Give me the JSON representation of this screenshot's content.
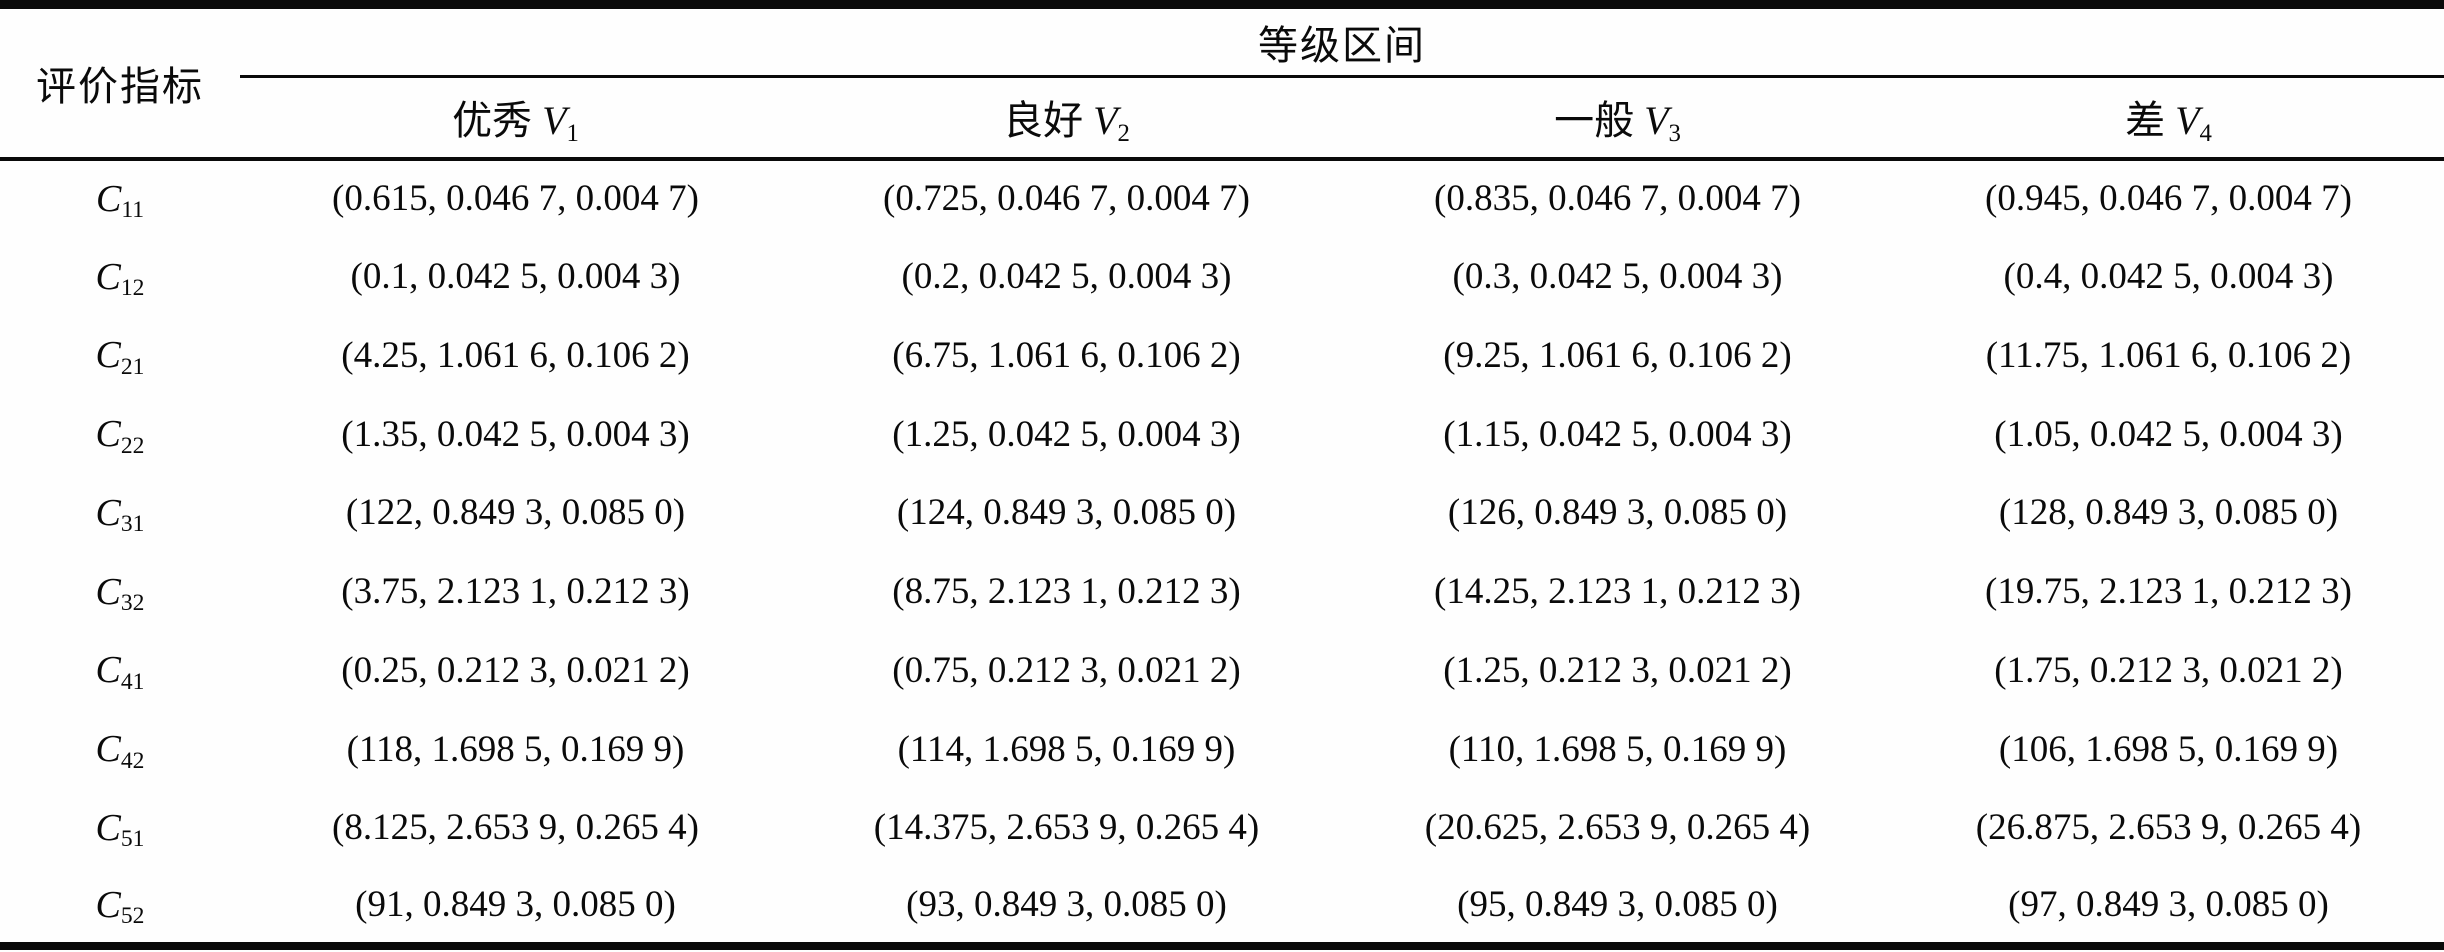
{
  "colors": {
    "text": "#0a0a0a",
    "background": "#fefefe",
    "rule": "#0a0a0a"
  },
  "table": {
    "corner_header": "评价指标",
    "group_header": "等级区间",
    "grade_headers": [
      {
        "text": "优秀",
        "var": "V",
        "sub": "1"
      },
      {
        "text": "良好",
        "var": "V",
        "sub": "2"
      },
      {
        "text": "一般",
        "var": "V",
        "sub": "3"
      },
      {
        "text": "差",
        "var": "V",
        "sub": "4"
      }
    ],
    "rows": [
      {
        "var": "C",
        "sub": "11",
        "cells": [
          "(0.615, 0.046 7, 0.004 7)",
          "(0.725, 0.046 7, 0.004 7)",
          "(0.835, 0.046 7, 0.004 7)",
          "(0.945, 0.046 7, 0.004 7)"
        ]
      },
      {
        "var": "C",
        "sub": "12",
        "cells": [
          "(0.1, 0.042 5, 0.004 3)",
          "(0.2, 0.042 5, 0.004 3)",
          "(0.3, 0.042 5, 0.004 3)",
          "(0.4, 0.042 5, 0.004 3)"
        ]
      },
      {
        "var": "C",
        "sub": "21",
        "cells": [
          "(4.25, 1.061 6, 0.106 2)",
          "(6.75, 1.061 6, 0.106 2)",
          "(9.25, 1.061 6, 0.106 2)",
          "(11.75, 1.061 6, 0.106 2)"
        ]
      },
      {
        "var": "C",
        "sub": "22",
        "cells": [
          "(1.35, 0.042 5, 0.004 3)",
          "(1.25, 0.042 5, 0.004 3)",
          "(1.15, 0.042 5, 0.004 3)",
          "(1.05, 0.042 5, 0.004 3)"
        ]
      },
      {
        "var": "C",
        "sub": "31",
        "cells": [
          "(122, 0.849 3, 0.085 0)",
          "(124, 0.849 3, 0.085 0)",
          "(126, 0.849 3, 0.085 0)",
          "(128, 0.849 3, 0.085 0)"
        ]
      },
      {
        "var": "C",
        "sub": "32",
        "cells": [
          "(3.75, 2.123 1, 0.212 3)",
          "(8.75, 2.123 1, 0.212 3)",
          "(14.25, 2.123 1, 0.212 3)",
          "(19.75, 2.123 1, 0.212 3)"
        ]
      },
      {
        "var": "C",
        "sub": "41",
        "cells": [
          "(0.25, 0.212 3, 0.021 2)",
          "(0.75, 0.212 3, 0.021 2)",
          "(1.25, 0.212 3, 0.021 2)",
          "(1.75, 0.212 3, 0.021 2)"
        ]
      },
      {
        "var": "C",
        "sub": "42",
        "cells": [
          "(118, 1.698 5, 0.169 9)",
          "(114, 1.698 5, 0.169 9)",
          "(110, 1.698 5, 0.169 9)",
          "(106, 1.698 5, 0.169 9)"
        ]
      },
      {
        "var": "C",
        "sub": "51",
        "cells": [
          "(8.125, 2.653 9, 0.265 4)",
          "(14.375, 2.653 9, 0.265 4)",
          "(20.625, 2.653 9, 0.265 4)",
          "(26.875, 2.653 9, 0.265 4)"
        ]
      },
      {
        "var": "C",
        "sub": "52",
        "cells": [
          "(91, 0.849 3, 0.085 0)",
          "(93, 0.849 3, 0.085 0)",
          "(95, 0.849 3, 0.085 0)",
          "(97, 0.849 3, 0.085 0)"
        ]
      }
    ]
  }
}
